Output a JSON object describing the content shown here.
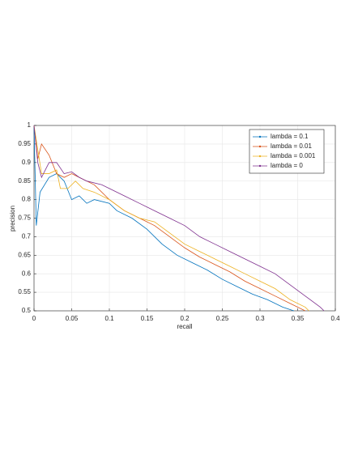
{
  "chart_data": {
    "type": "line",
    "xlabel": "recall",
    "ylabel": "precision",
    "xlim": [
      0,
      0.4
    ],
    "xticks": [
      0,
      0.05,
      0.1,
      0.15,
      0.2,
      0.25,
      0.3,
      0.35,
      0.4
    ],
    "ylim": [
      0.5,
      1
    ],
    "yticks": [
      0.5,
      0.55,
      0.6,
      0.65,
      0.7,
      0.75,
      0.8,
      0.85,
      0.9,
      0.95,
      1
    ],
    "grid": true,
    "legend": "northeast",
    "series": [
      {
        "name": "lambda = 0.1",
        "color": "#0072bd",
        "x": [
          0,
          0.003,
          0.008,
          0.02,
          0.03,
          0.04,
          0.05,
          0.06,
          0.07,
          0.08,
          0.1,
          0.11,
          0.13,
          0.15,
          0.17,
          0.19,
          0.21,
          0.23,
          0.25,
          0.27,
          0.29,
          0.31,
          0.33,
          0.345
        ],
        "values": [
          1,
          0.73,
          0.82,
          0.86,
          0.87,
          0.85,
          0.8,
          0.81,
          0.79,
          0.8,
          0.79,
          0.77,
          0.75,
          0.72,
          0.68,
          0.65,
          0.63,
          0.61,
          0.585,
          0.565,
          0.545,
          0.53,
          0.51,
          0.5
        ]
      },
      {
        "name": "lambda = 0.01",
        "color": "#d95319",
        "x": [
          0,
          0.005,
          0.01,
          0.02,
          0.03,
          0.04,
          0.05,
          0.06,
          0.07,
          0.08,
          0.1,
          0.12,
          0.14,
          0.16,
          0.18,
          0.2,
          0.22,
          0.24,
          0.26,
          0.28,
          0.3,
          0.32,
          0.34,
          0.36
        ],
        "values": [
          1,
          0.91,
          0.95,
          0.92,
          0.87,
          0.86,
          0.87,
          0.86,
          0.85,
          0.84,
          0.8,
          0.77,
          0.75,
          0.73,
          0.7,
          0.67,
          0.645,
          0.625,
          0.605,
          0.58,
          0.56,
          0.54,
          0.52,
          0.5
        ]
      },
      {
        "name": "lambda = 0.001",
        "color": "#edb120",
        "x": [
          0,
          0.01,
          0.02,
          0.03,
          0.035,
          0.045,
          0.055,
          0.065,
          0.08,
          0.1,
          0.12,
          0.14,
          0.16,
          0.18,
          0.2,
          0.22,
          0.24,
          0.26,
          0.28,
          0.3,
          0.32,
          0.34,
          0.36,
          0.365
        ],
        "values": [
          1,
          0.87,
          0.87,
          0.88,
          0.83,
          0.83,
          0.85,
          0.83,
          0.82,
          0.8,
          0.77,
          0.75,
          0.74,
          0.71,
          0.68,
          0.66,
          0.64,
          0.62,
          0.6,
          0.58,
          0.56,
          0.53,
          0.51,
          0.5
        ]
      },
      {
        "name": "lambda = 0",
        "color": "#7e2f8e",
        "x": [
          0,
          0.005,
          0.01,
          0.02,
          0.03,
          0.04,
          0.05,
          0.06,
          0.07,
          0.09,
          0.1,
          0.12,
          0.14,
          0.16,
          0.18,
          0.2,
          0.22,
          0.24,
          0.26,
          0.28,
          0.3,
          0.32,
          0.34,
          0.36,
          0.38,
          0.385
        ],
        "values": [
          1,
          0.9,
          0.86,
          0.9,
          0.9,
          0.87,
          0.875,
          0.86,
          0.85,
          0.84,
          0.83,
          0.81,
          0.79,
          0.77,
          0.75,
          0.73,
          0.7,
          0.68,
          0.66,
          0.64,
          0.62,
          0.6,
          0.57,
          0.54,
          0.51,
          0.5
        ]
      }
    ]
  }
}
